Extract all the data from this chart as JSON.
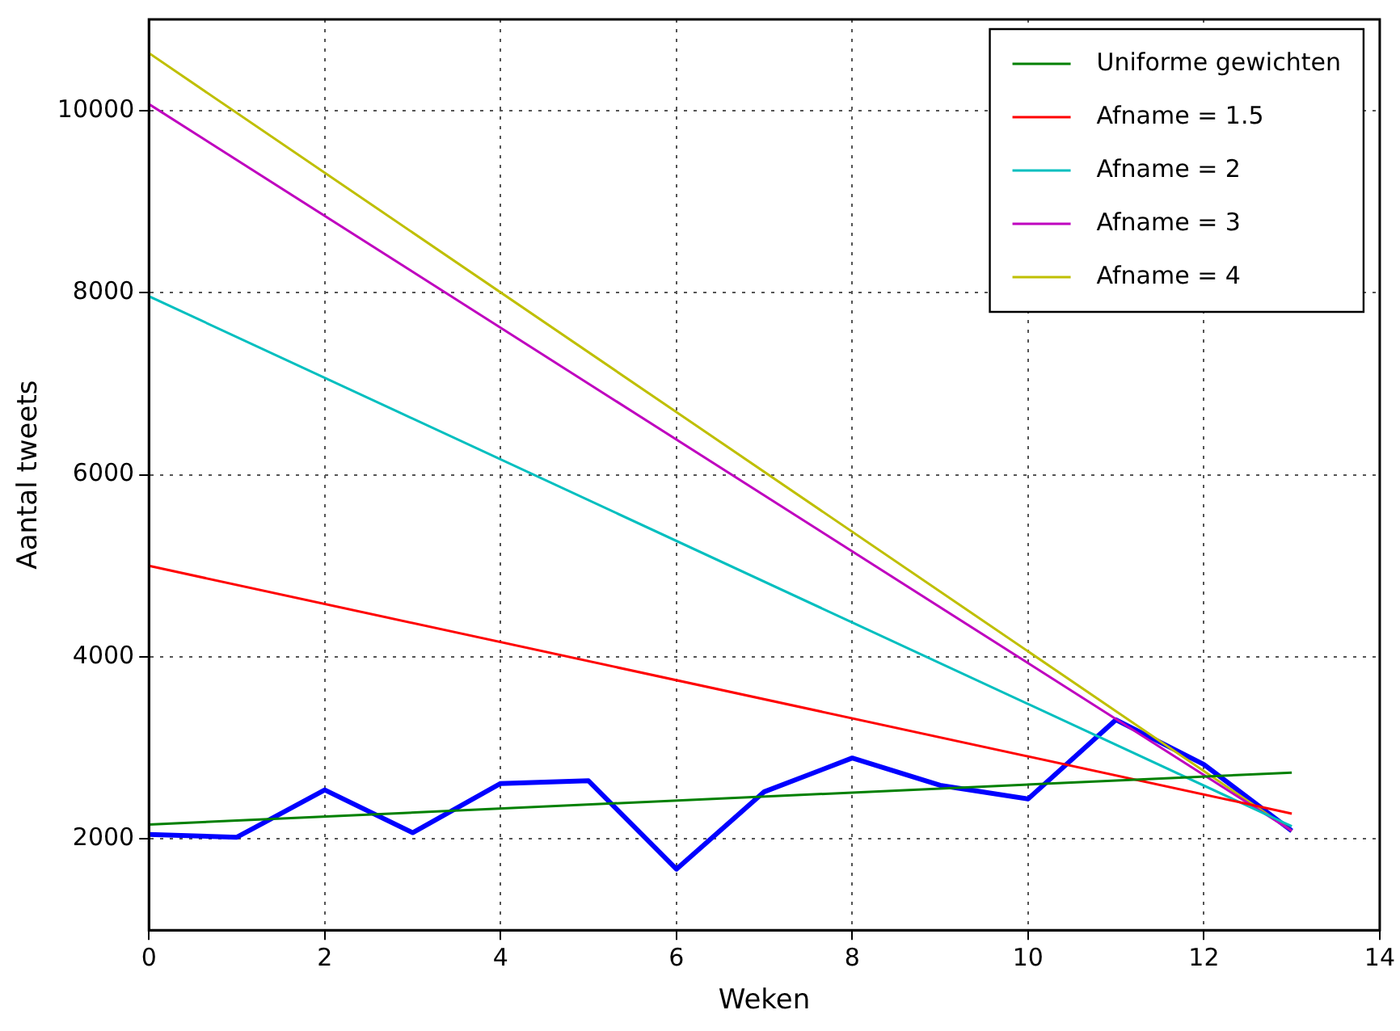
{
  "chart_data": {
    "type": "line",
    "xlabel": "Weken",
    "ylabel": "Aantal tweets",
    "xlim": [
      0,
      14
    ],
    "xticks": [
      0,
      2,
      4,
      6,
      8,
      10,
      12,
      14
    ],
    "ylim": [
      1000,
      11000
    ],
    "yticks": [
      2000,
      4000,
      6000,
      8000,
      10000
    ],
    "grid": true,
    "legend": "top right",
    "marker": "none",
    "line_style": "solid",
    "series": [
      {
        "color": "#0000ff",
        "x": [
          0,
          1,
          2,
          3,
          4,
          5,
          6,
          7,
          8,
          9,
          10,
          11,
          12,
          13
        ],
        "values": [
          2050,
          2020,
          2540,
          2070,
          2610,
          2640,
          1670,
          2520,
          2890,
          2590,
          2440,
          3310,
          2820,
          2090
        ]
      },
      {
        "name": "Uniforme gewichten",
        "color": "#008000",
        "x": [
          0,
          13
        ],
        "values": [
          2160,
          2730
        ]
      },
      {
        "name": "Afname = 1.5",
        "color": "#ff0000",
        "x": [
          0,
          13
        ],
        "values": [
          5000,
          2280
        ]
      },
      {
        "name": "Afname = 2",
        "color": "#00bfbf",
        "x": [
          0,
          13
        ],
        "values": [
          7960,
          2140
        ]
      },
      {
        "name": "Afname = 3",
        "color": "#bf00bf",
        "x": [
          0,
          13
        ],
        "values": [
          10070,
          2090
        ]
      },
      {
        "name": "Afname = 4",
        "color": "#bfbf00",
        "x": [
          0,
          13
        ],
        "values": [
          10630,
          2090
        ]
      }
    ]
  }
}
